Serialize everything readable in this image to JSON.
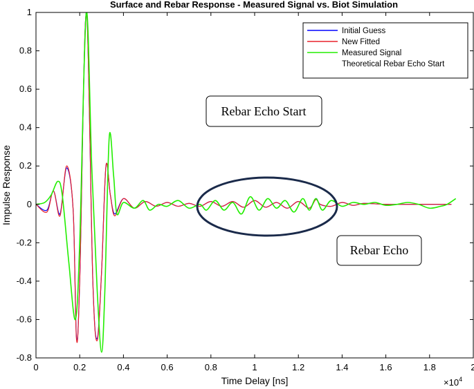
{
  "chart_data": {
    "type": "line",
    "title": "Surface and Rebar Response - Measured Signal vs. Biot Simulation",
    "xlabel": "Time Delay [ns]",
    "ylabel": "Impulse Response",
    "x_multiplier_label": "×10",
    "x_multiplier_exp": "4",
    "xlim": [
      0,
      2
    ],
    "ylim": [
      -0.8,
      1
    ],
    "xticks": [
      "0",
      "0.2",
      "0.4",
      "0.6",
      "0.8",
      "1",
      "1.2",
      "1.4",
      "1.6",
      "1.8",
      "2"
    ],
    "xtick_values": [
      0,
      0.2,
      0.4,
      0.6,
      0.8,
      1,
      1.2,
      1.4,
      1.6,
      1.8,
      2
    ],
    "yticks": [
      "-0.8",
      "-0.6",
      "-0.4",
      "-0.2",
      "0",
      "0.2",
      "0.4",
      "0.6",
      "0.8",
      "1"
    ],
    "ytick_values": [
      -0.8,
      -0.6,
      -0.4,
      -0.2,
      0,
      0.2,
      0.4,
      0.6,
      0.8,
      1
    ],
    "grid": false,
    "legend_position": "top-right",
    "series": [
      {
        "name": "Initial Guess",
        "color": "#0000ff",
        "x": [
          0,
          0.05,
          0.08,
          0.11,
          0.14,
          0.17,
          0.185,
          0.2,
          0.23,
          0.26,
          0.28,
          0.3,
          0.32,
          0.34,
          0.36,
          0.4,
          0.45,
          0.5,
          0.55,
          0.6,
          0.65,
          0.7,
          0.75,
          0.8,
          0.85,
          0.9,
          0.95,
          1.0,
          1.05,
          1.1,
          1.15,
          1.2,
          1.25,
          1.28,
          1.3,
          1.35,
          1.4,
          1.45,
          1.5,
          1.6,
          1.7,
          1.8,
          1.9
        ],
        "y": [
          0,
          -0.03,
          0.07,
          -0.05,
          0.19,
          -0.03,
          -0.69,
          -0.4,
          1.0,
          -0.4,
          -0.7,
          -0.35,
          0.2,
          0.05,
          -0.05,
          0.03,
          -0.02,
          0.015,
          -0.01,
          0.01,
          -0.01,
          0.005,
          -0.01,
          0.015,
          -0.01,
          0.015,
          -0.015,
          0.02,
          -0.015,
          0.01,
          -0.02,
          0.015,
          -0.02,
          0.03,
          0.0,
          -0.01,
          0.01,
          -0.005,
          0.005,
          0,
          0,
          0,
          0
        ]
      },
      {
        "name": "New Fitted",
        "color": "#e8202a",
        "x": [
          0,
          0.05,
          0.08,
          0.11,
          0.14,
          0.17,
          0.185,
          0.2,
          0.23,
          0.26,
          0.28,
          0.3,
          0.32,
          0.34,
          0.36,
          0.4,
          0.45,
          0.5,
          0.55,
          0.6,
          0.65,
          0.7,
          0.75,
          0.8,
          0.85,
          0.9,
          0.95,
          1.0,
          1.05,
          1.1,
          1.15,
          1.2,
          1.25,
          1.28,
          1.3,
          1.35,
          1.4,
          1.45,
          1.5,
          1.6,
          1.7,
          1.8,
          1.9
        ],
        "y": [
          0,
          -0.04,
          0.07,
          -0.06,
          0.2,
          -0.03,
          -0.7,
          -0.4,
          1.0,
          -0.4,
          -0.71,
          -0.35,
          0.2,
          0.05,
          -0.06,
          0.03,
          -0.02,
          0.015,
          -0.01,
          0.01,
          -0.01,
          0.005,
          -0.01,
          0.015,
          -0.01,
          0.015,
          -0.015,
          0.02,
          -0.015,
          0.01,
          -0.02,
          0.015,
          -0.02,
          0.025,
          0.0,
          -0.01,
          0.01,
          -0.005,
          0.005,
          0,
          0,
          0,
          0
        ]
      },
      {
        "name": "Measured Signal",
        "color": "#22ee00",
        "x": [
          0,
          0.04,
          0.07,
          0.1,
          0.12,
          0.15,
          0.18,
          0.2,
          0.23,
          0.255,
          0.28,
          0.3,
          0.315,
          0.335,
          0.355,
          0.37,
          0.4,
          0.45,
          0.49,
          0.52,
          0.56,
          0.6,
          0.65,
          0.7,
          0.75,
          0.78,
          0.82,
          0.86,
          0.9,
          0.94,
          0.98,
          1.02,
          1.06,
          1.1,
          1.14,
          1.18,
          1.22,
          1.25,
          1.28,
          1.31,
          1.35,
          1.4,
          1.45,
          1.5,
          1.55,
          1.6,
          1.65,
          1.7,
          1.75,
          1.8,
          1.85,
          1.88,
          1.92
        ],
        "y": [
          0,
          0.01,
          0.05,
          0.12,
          0.05,
          -0.3,
          -0.6,
          -0.2,
          1.0,
          0.2,
          -0.45,
          -0.77,
          -0.45,
          0.35,
          0.15,
          -0.05,
          0.01,
          -0.02,
          0.02,
          -0.03,
          0.0,
          -0.01,
          0.02,
          -0.02,
          0.0,
          -0.03,
          0.02,
          -0.03,
          0.01,
          -0.05,
          0.04,
          -0.03,
          0.03,
          -0.02,
          0.02,
          -0.04,
          0.03,
          -0.03,
          0.03,
          -0.03,
          0.02,
          -0.01,
          0.01,
          0.0,
          0.01,
          -0.005,
          0.0,
          0.01,
          0.0,
          -0.02,
          -0.01,
          0.0,
          0.03
        ]
      },
      {
        "name": "Theoretical Rebar Echo Start",
        "color": "#ffffff",
        "x": [],
        "y": []
      }
    ],
    "annotations": {
      "echo_start_label": "Rebar Echo Start",
      "echo_label": "Rebar Echo"
    }
  }
}
